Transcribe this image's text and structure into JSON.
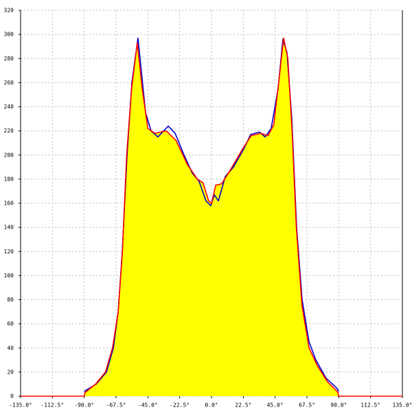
{
  "chart_data": {
    "type": "line",
    "xlim": [
      -135,
      135
    ],
    "ylim": [
      0,
      320
    ],
    "xticks": [
      {
        "value": -135,
        "label": "-135.0°"
      },
      {
        "value": -112.5,
        "label": "-112.5°"
      },
      {
        "value": -90,
        "label": "-90.0°"
      },
      {
        "value": -67.5,
        "label": "-67.5°"
      },
      {
        "value": -45,
        "label": "-45.0°"
      },
      {
        "value": -22.5,
        "label": "-22.5°"
      },
      {
        "value": 0,
        "label": "0.0°"
      },
      {
        "value": 22.5,
        "label": "22.5°"
      },
      {
        "value": 45,
        "label": "45.0°"
      },
      {
        "value": 67.5,
        "label": "67.5°"
      },
      {
        "value": 90,
        "label": "90.0°"
      },
      {
        "value": 112.5,
        "label": "112.5°"
      },
      {
        "value": 135,
        "label": "135.0°"
      }
    ],
    "yticks": [
      0,
      20,
      40,
      60,
      80,
      100,
      120,
      140,
      160,
      180,
      200,
      220,
      240,
      260,
      280,
      300,
      320
    ],
    "grid": true,
    "series": [
      {
        "color": "#ff0000",
        "fill": "#ffff00",
        "x": [
          -135,
          -90,
          -89.5,
          -82,
          -75,
          -70,
          -66,
          -63,
          -60,
          -56.5,
          -52.5,
          -49,
          -45,
          -40,
          -32,
          -25,
          -17,
          -10,
          -6,
          -2,
          0,
          3,
          7,
          12,
          22,
          28,
          35,
          40,
          44,
          48,
          51,
          54,
          57,
          60,
          64,
          69,
          75,
          82,
          88,
          89.5,
          90,
          135
        ],
        "values": [
          0,
          0,
          3,
          10,
          20,
          40,
          70,
          120,
          200,
          255,
          293,
          255,
          222,
          218,
          220,
          212,
          192,
          180,
          177,
          162,
          160,
          175,
          176,
          185,
          205,
          216,
          218,
          216,
          225,
          265,
          297,
          280,
          220,
          140,
          75,
          40,
          25,
          12,
          5,
          3,
          0,
          0
        ]
      },
      {
        "color": "#0000cc",
        "x": [
          -90,
          -81.6,
          -74.3,
          -69.4,
          -66,
          -63.1,
          -59.7,
          -56.3,
          -52,
          -46.6,
          -42.7,
          -37.9,
          -30.6,
          -25.7,
          -19.4,
          -13.6,
          -8.7,
          -3.9,
          -0.5,
          2,
          4.9,
          9.7,
          15.5,
          22.8,
          27.7,
          34,
          37.9,
          42.2,
          47.1,
          50.5,
          53.4,
          56.8,
          60.2,
          64.1,
          69,
          73.8,
          81,
          88.4,
          90
        ],
        "values": [
          4,
          10,
          20,
          40,
          70,
          120,
          200,
          260,
          297,
          235,
          220,
          215,
          224,
          218,
          200,
          185,
          178,
          162,
          158,
          167,
          162,
          182,
          190,
          205,
          217,
          219,
          215,
          222,
          255,
          296,
          285,
          230,
          140,
          80,
          45,
          30,
          15,
          7,
          4
        ]
      }
    ]
  }
}
